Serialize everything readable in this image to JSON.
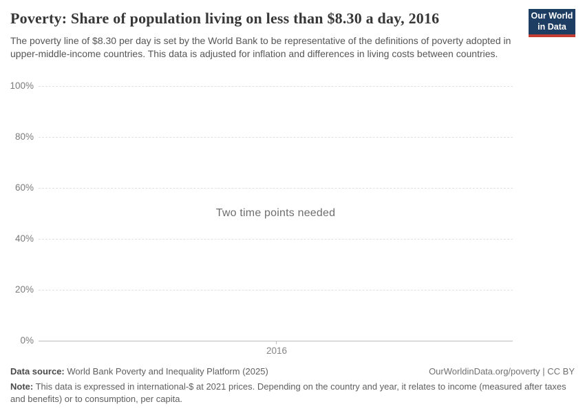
{
  "header": {
    "title": "Poverty: Share of population living on less than $8.30 a day, 2016",
    "subtitle": "The poverty line of $8.30 per day is set by the World Bank to be representative of the definitions of poverty adopted in upper-middle-income countries. This data is adjusted for inflation and differences in living costs between countries.",
    "logo": {
      "line1": "Our World",
      "line2": "in Data",
      "bg_color": "#1d3d63",
      "stripe_color": "#c43c32"
    }
  },
  "chart_data": {
    "type": "line",
    "title": "Poverty: Share of population living on less than $8.30 a day, 2016",
    "message": "Two time points needed",
    "series": [],
    "categories": [
      2016
    ],
    "x_tick_labels": [
      "2016"
    ],
    "xlabel": "",
    "ylabel": "",
    "ylim": [
      0,
      100
    ],
    "y_ticks": [
      "0%",
      "20%",
      "40%",
      "60%",
      "80%",
      "100%"
    ],
    "grid": "horizontal-dashed",
    "legend": "none",
    "colors": {
      "gridline": "#e0e0e0",
      "axis_line": "#bcbcbc",
      "tick_label": "#7a7a7a",
      "message_text": "#6d6d6d"
    }
  },
  "footer": {
    "datasource_label": "Data source:",
    "datasource_value": " World Bank Poverty and Inequality Platform (2025)",
    "credit": "OurWorldinData.org/poverty | CC BY",
    "note_label": "Note:",
    "note_value": " This data is expressed in international-$ at 2021 prices. Depending on the country and year, it relates to income (measured after taxes and benefits) or to consumption, per capita."
  }
}
